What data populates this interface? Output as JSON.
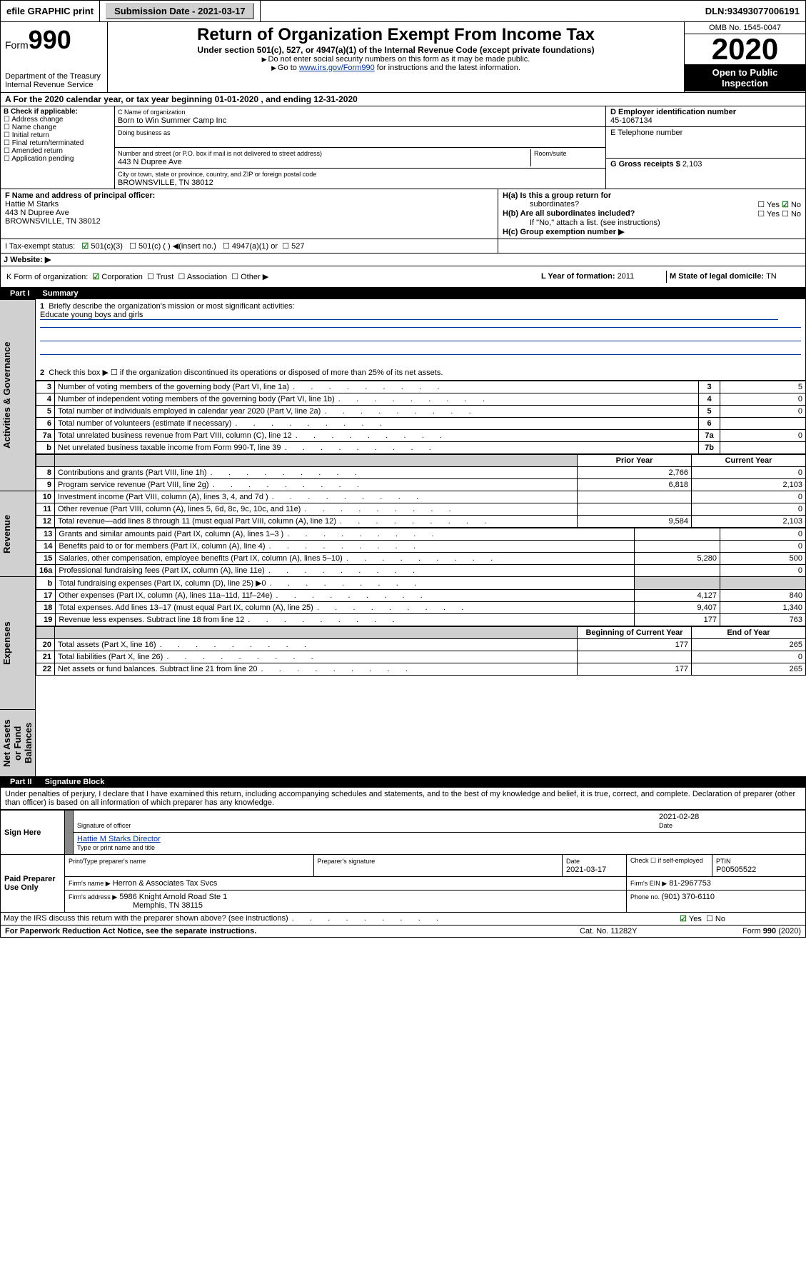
{
  "topbar": {
    "efile": "efile GRAPHIC print",
    "submission_label": "Submission Date - ",
    "submission_date": "2021-03-17",
    "dln_label": "DLN: ",
    "dln": "93493077006191"
  },
  "header": {
    "form_prefix": "Form",
    "form_number": "990",
    "dept1": "Department of the Treasury",
    "dept2": "Internal Revenue Service",
    "title": "Return of Organization Exempt From Income Tax",
    "subtitle": "Under section 501(c), 527, or 4947(a)(1) of the Internal Revenue Code (except private foundations)",
    "note1": "Do not enter social security numbers on this form as it may be made public.",
    "note2_pre": "Go to ",
    "note2_link": "www.irs.gov/Form990",
    "note2_post": " for instructions and the latest information.",
    "omb": "OMB No. 1545-0047",
    "year": "2020",
    "inspect1": "Open to Public",
    "inspect2": "Inspection"
  },
  "period": {
    "text_a": "A For the 2020 calendar year, or tax year beginning ",
    "begin": "01-01-2020",
    "text_b": " , and ending ",
    "end": "12-31-2020"
  },
  "boxB": {
    "title": "B Check if applicable:",
    "items": [
      "Address change",
      "Name change",
      "Initial return",
      "Final return/terminated",
      "Amended return",
      "Application pending"
    ]
  },
  "boxC": {
    "name_lab": "C Name of organization",
    "name": "Born to Win Summer Camp Inc",
    "dba_lab": "Doing business as",
    "dba": "",
    "addr_lab": "Number and street (or P.O. box if mail is not delivered to street address)",
    "room_lab": "Room/suite",
    "addr": "443 N Dupree Ave",
    "city_lab": "City or town, state or province, country, and ZIP or foreign postal code",
    "city": "BROWNSVILLE, TN  38012"
  },
  "boxD": {
    "lab": "D Employer identification number",
    "val": "45-1067134"
  },
  "boxE": {
    "lab": "E Telephone number",
    "val": ""
  },
  "boxG": {
    "lab": "G Gross receipts $ ",
    "val": "2,103"
  },
  "boxF": {
    "lab": "F Name and address of principal officer:",
    "name": "Hattie M Starks",
    "addr1": "443 N Dupree Ave",
    "addr2": "BROWNSVILLE, TN  38012"
  },
  "boxH": {
    "a_lab": "H(a)  Is this a group return for",
    "a_lab2": "subordinates?",
    "a_yes": "Yes",
    "a_no": "No",
    "b_lab": "H(b)  Are all subordinates included?",
    "b_yes": "Yes",
    "b_no": "No",
    "b_note": "If \"No,\" attach a list. (see instructions)",
    "c_lab": "H(c)  Group exemption number ▶"
  },
  "boxI": {
    "lab": "I   Tax-exempt status:",
    "o1": "501(c)(3)",
    "o2": "501(c) (   ) ◀(insert no.)",
    "o3": "4947(a)(1) or",
    "o4": "527"
  },
  "boxJ": {
    "lab": "J   Website: ▶"
  },
  "boxK": {
    "lab": "K Form of organization:",
    "o1": "Corporation",
    "o2": "Trust",
    "o3": "Association",
    "o4": "Other ▶"
  },
  "boxL": {
    "lab": "L Year of formation: ",
    "val": "2011"
  },
  "boxM": {
    "lab": "M State of legal domicile: ",
    "val": "TN"
  },
  "part1": {
    "hdr_pt": "Part I",
    "hdr_title": "Summary",
    "tab_activities": "Activities & Governance",
    "tab_revenue": "Revenue",
    "tab_expenses": "Expenses",
    "tab_net": "Net Assets or Fund Balances",
    "q1": "Briefly describe the organization's mission or most significant activities:",
    "mission": "Educate young boys and girls",
    "q2": "Check this box ▶ ☐  if the organization discontinued its operations or disposed of more than 25% of its net assets.",
    "rows_gov": [
      {
        "n": "3",
        "t": "Number of voting members of the governing body (Part VI, line 1a)",
        "box": "3",
        "v": "5"
      },
      {
        "n": "4",
        "t": "Number of independent voting members of the governing body (Part VI, line 1b)",
        "box": "4",
        "v": "0"
      },
      {
        "n": "5",
        "t": "Total number of individuals employed in calendar year 2020 (Part V, line 2a)",
        "box": "5",
        "v": "0"
      },
      {
        "n": "6",
        "t": "Total number of volunteers (estimate if necessary)",
        "box": "6",
        "v": ""
      },
      {
        "n": "7a",
        "t": "Total unrelated business revenue from Part VIII, column (C), line 12",
        "box": "7a",
        "v": "0"
      },
      {
        "n": "b",
        "t": "Net unrelated business taxable income from Form 990-T, line 39",
        "box": "7b",
        "v": ""
      }
    ],
    "col_prior": "Prior Year",
    "col_curr": "Current Year",
    "rows_rev": [
      {
        "n": "8",
        "t": "Contributions and grants (Part VIII, line 1h)",
        "p": "2,766",
        "c": "0"
      },
      {
        "n": "9",
        "t": "Program service revenue (Part VIII, line 2g)",
        "p": "6,818",
        "c": "2,103"
      },
      {
        "n": "10",
        "t": "Investment income (Part VIII, column (A), lines 3, 4, and 7d )",
        "p": "",
        "c": "0"
      },
      {
        "n": "11",
        "t": "Other revenue (Part VIII, column (A), lines 5, 6d, 8c, 9c, 10c, and 11e)",
        "p": "",
        "c": "0"
      },
      {
        "n": "12",
        "t": "Total revenue—add lines 8 through 11 (must equal Part VIII, column (A), line 12)",
        "p": "9,584",
        "c": "2,103"
      }
    ],
    "rows_exp": [
      {
        "n": "13",
        "t": "Grants and similar amounts paid (Part IX, column (A), lines 1–3 )",
        "p": "",
        "c": "0"
      },
      {
        "n": "14",
        "t": "Benefits paid to or for members (Part IX, column (A), line 4)",
        "p": "",
        "c": "0"
      },
      {
        "n": "15",
        "t": "Salaries, other compensation, employee benefits (Part IX, column (A), lines 5–10)",
        "p": "5,280",
        "c": "500"
      },
      {
        "n": "16a",
        "t": "Professional fundraising fees (Part IX, column (A), line 11e)",
        "p": "",
        "c": "0"
      },
      {
        "n": "b",
        "t": "Total fundraising expenses (Part IX, column (D), line 25) ▶0",
        "p": "SHADE",
        "c": "SHADE"
      },
      {
        "n": "17",
        "t": "Other expenses (Part IX, column (A), lines 11a–11d, 11f–24e)",
        "p": "4,127",
        "c": "840"
      },
      {
        "n": "18",
        "t": "Total expenses. Add lines 13–17 (must equal Part IX, column (A), line 25)",
        "p": "9,407",
        "c": "1,340"
      },
      {
        "n": "19",
        "t": "Revenue less expenses. Subtract line 18 from line 12",
        "p": "177",
        "c": "763"
      }
    ],
    "col_begin": "Beginning of Current Year",
    "col_end": "End of Year",
    "rows_net": [
      {
        "n": "20",
        "t": "Total assets (Part X, line 16)",
        "p": "177",
        "c": "265"
      },
      {
        "n": "21",
        "t": "Total liabilities (Part X, line 26)",
        "p": "",
        "c": "0"
      },
      {
        "n": "22",
        "t": "Net assets or fund balances. Subtract line 21 from line 20",
        "p": "177",
        "c": "265"
      }
    ]
  },
  "part2": {
    "hdr_pt": "Part II",
    "hdr_title": "Signature Block",
    "decl": "Under penalties of perjury, I declare that I have examined this return, including accompanying schedules and statements, and to the best of my knowledge and belief, it is true, correct, and complete. Declaration of preparer (other than officer) is based on all information of which preparer has any knowledge.",
    "sign_here": "Sign Here",
    "sig_officer_lab": "Signature of officer",
    "sig_date": "2021-02-28",
    "date_lab": "Date",
    "officer_name": "Hattie M Starks  Director",
    "officer_lab": "Type or print name and title",
    "paid": "Paid Preparer Use Only",
    "prep_name_lab": "Print/Type preparer's name",
    "prep_sig_lab": "Preparer's signature",
    "prep_date_lab": "Date",
    "prep_date": "2021-03-17",
    "self_lab": "Check ☐ if self-employed",
    "ptin_lab": "PTIN",
    "ptin": "P00505522",
    "firm_lab": "Firm's name    ▶",
    "firm": "Herron & Associates Tax Svcs",
    "ein_lab": "Firm's EIN ▶",
    "ein": "81-2967753",
    "faddr_lab": "Firm's address ▶",
    "faddr1": "5986 Knight Arnold Road Ste 1",
    "faddr2": "Memphis, TN  38115",
    "phone_lab": "Phone no. ",
    "phone": "(901) 370-6110",
    "discuss": "May the IRS discuss this return with the preparer shown above? (see instructions)",
    "discuss_yes": "Yes",
    "discuss_no": "No"
  },
  "footer": {
    "left": "For Paperwork Reduction Act Notice, see the separate instructions.",
    "mid": "Cat. No. 11282Y",
    "right": "Form 990 (2020)"
  }
}
